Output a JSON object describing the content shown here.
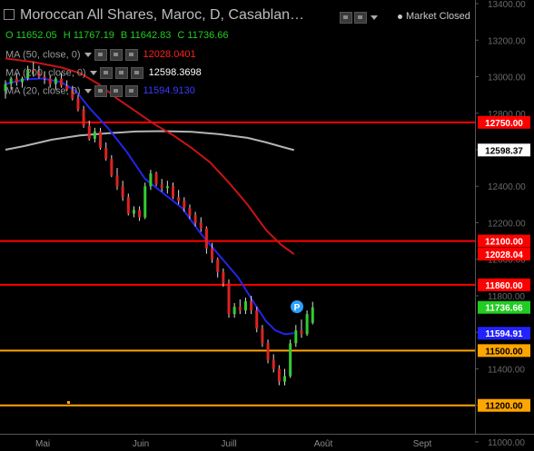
{
  "header": {
    "title": "Moroccan All Shares, Maroc, D, Casablan…",
    "ohlc": {
      "o": "O 11652.05",
      "h": "H 11767.19",
      "l": "B 11642.83",
      "c": "C 11736.66"
    },
    "market_status": "Market Closed",
    "ma": [
      {
        "label": "MA (50, close, 0)",
        "value": "12028.0401",
        "color": "#ff2020"
      },
      {
        "label": "MA (200, close, 0)",
        "value": "12598.3698",
        "color": "#ffffff"
      },
      {
        "label": "MA (20, close, 0)",
        "value": "11594.9130",
        "color": "#2a2aff"
      }
    ]
  },
  "chart_data": {
    "type": "candlestick",
    "ylim": [
      10950,
      13420
    ],
    "y_ticks": [
      "13400.00",
      "13200.00",
      "13000.00",
      "12800.00",
      "12600.00",
      "12400.00",
      "12200.00",
      "12000.00",
      "11800.00",
      "11600.00",
      "11400.00",
      "11200.00",
      "11000.00"
    ],
    "x_ticks": [
      "Mai",
      "Juin",
      "Juill",
      "Août",
      "Sept"
    ],
    "horizontal_lines": [
      {
        "value": 12750,
        "color": "#ff0000",
        "label": "12750.00"
      },
      {
        "value": 12100,
        "color": "#ff0000",
        "label": "12100.00"
      },
      {
        "value": 11860,
        "color": "#ff0000",
        "label": "11860.00"
      },
      {
        "value": 11500,
        "color": "#ffa500",
        "label": "11500.00"
      },
      {
        "value": 11200,
        "color": "#ffa500",
        "label": "11200.00"
      }
    ],
    "price_labels": [
      {
        "value": 12598.37,
        "text": "12598.37",
        "bg": "#ffffff",
        "fg": "#000000"
      },
      {
        "value": 12028.04,
        "text": "12028.04",
        "bg": "#ff0000",
        "fg": "#ffffff"
      },
      {
        "value": 11736.66,
        "text": "11736.66",
        "bg": "#22cc22",
        "fg": "#ffffff"
      },
      {
        "value": 11594.91,
        "text": "11594.91",
        "bg": "#2222ff",
        "fg": "#ffffff"
      }
    ],
    "ma200": [
      [
        0,
        12600
      ],
      [
        10,
        12620
      ],
      [
        25,
        12655
      ],
      [
        40,
        12678
      ],
      [
        55,
        12690
      ],
      [
        70,
        12700
      ],
      [
        85,
        12702
      ],
      [
        100,
        12698
      ],
      [
        115,
        12685
      ],
      [
        130,
        12665
      ],
      [
        140,
        12640
      ],
      [
        150,
        12612
      ],
      [
        155,
        12598
      ]
    ],
    "ma50": [
      [
        0,
        13100
      ],
      [
        15,
        13080
      ],
      [
        30,
        13050
      ],
      [
        40,
        13020
      ],
      [
        50,
        12960
      ],
      [
        60,
        12880
      ],
      [
        70,
        12810
      ],
      [
        80,
        12740
      ],
      [
        90,
        12680
      ],
      [
        100,
        12610
      ],
      [
        110,
        12530
      ],
      [
        120,
        12420
      ],
      [
        130,
        12300
      ],
      [
        140,
        12160
      ],
      [
        148,
        12080
      ],
      [
        155,
        12028
      ]
    ],
    "ma20": [
      [
        0,
        12960
      ],
      [
        10,
        12985
      ],
      [
        20,
        12990
      ],
      [
        30,
        12970
      ],
      [
        38,
        12920
      ],
      [
        45,
        12830
      ],
      [
        55,
        12720
      ],
      [
        65,
        12590
      ],
      [
        75,
        12440
      ],
      [
        85,
        12360
      ],
      [
        95,
        12280
      ],
      [
        105,
        12140
      ],
      [
        115,
        12020
      ],
      [
        125,
        11900
      ],
      [
        133,
        11770
      ],
      [
        140,
        11660
      ],
      [
        145,
        11610
      ],
      [
        150,
        11590
      ],
      [
        155,
        11595
      ]
    ],
    "candles": [
      [
        0,
        12920,
        12980,
        12880,
        12960
      ],
      [
        3,
        12960,
        13000,
        12930,
        12990
      ],
      [
        6,
        12990,
        13020,
        12950,
        12970
      ],
      [
        9,
        12970,
        13000,
        12940,
        12990
      ],
      [
        12,
        12990,
        13060,
        12980,
        13040
      ],
      [
        15,
        13040,
        13080,
        13000,
        13030
      ],
      [
        18,
        13030,
        13060,
        12990,
        13000
      ],
      [
        21,
        13000,
        13030,
        12960,
        12990
      ],
      [
        24,
        12990,
        13010,
        12940,
        12960
      ],
      [
        27,
        12960,
        13000,
        12930,
        12990
      ],
      [
        30,
        12990,
        13020,
        12940,
        12950
      ],
      [
        33,
        12950,
        12980,
        12920,
        12930
      ],
      [
        36,
        12930,
        12950,
        12870,
        12880
      ],
      [
        39,
        12880,
        12900,
        12810,
        12820
      ],
      [
        42,
        12820,
        12840,
        12720,
        12730
      ],
      [
        45,
        12730,
        12760,
        12650,
        12660
      ],
      [
        48,
        12660,
        12720,
        12640,
        12700
      ],
      [
        51,
        12700,
        12720,
        12600,
        12610
      ],
      [
        54,
        12610,
        12640,
        12540,
        12550
      ],
      [
        57,
        12550,
        12570,
        12450,
        12460
      ],
      [
        60,
        12460,
        12500,
        12380,
        12400
      ],
      [
        63,
        12400,
        12430,
        12320,
        12340
      ],
      [
        66,
        12340,
        12360,
        12240,
        12250
      ],
      [
        69,
        12250,
        12290,
        12230,
        12270
      ],
      [
        72,
        12270,
        12290,
        12210,
        12230
      ],
      [
        75,
        12230,
        12420,
        12220,
        12400
      ],
      [
        78,
        12400,
        12490,
        12380,
        12470
      ],
      [
        81,
        12470,
        12480,
        12400,
        12410
      ],
      [
        84,
        12410,
        12440,
        12370,
        12390
      ],
      [
        87,
        12390,
        12430,
        12360,
        12400
      ],
      [
        90,
        12400,
        12420,
        12330,
        12340
      ],
      [
        93,
        12340,
        12380,
        12300,
        12320
      ],
      [
        96,
        12320,
        12340,
        12260,
        12280
      ],
      [
        99,
        12280,
        12300,
        12220,
        12240
      ],
      [
        102,
        12240,
        12260,
        12180,
        12200
      ],
      [
        105,
        12200,
        12230,
        12150,
        12170
      ],
      [
        108,
        12170,
        12180,
        12030,
        12060
      ],
      [
        111,
        12060,
        12090,
        11980,
        12000
      ],
      [
        114,
        12000,
        12010,
        11900,
        11930
      ],
      [
        117,
        11930,
        11950,
        11850,
        11870
      ],
      [
        120,
        11870,
        11890,
        11680,
        11700
      ],
      [
        123,
        11700,
        11760,
        11680,
        11740
      ],
      [
        126,
        11740,
        11780,
        11700,
        11720
      ],
      [
        129,
        11720,
        11790,
        11700,
        11770
      ],
      [
        132,
        11770,
        11800,
        11700,
        11720
      ],
      [
        135,
        11720,
        11740,
        11600,
        11620
      ],
      [
        138,
        11620,
        11640,
        11520,
        11540
      ],
      [
        141,
        11540,
        11560,
        11430,
        11450
      ],
      [
        144,
        11450,
        11480,
        11380,
        11400
      ],
      [
        147,
        11400,
        11420,
        11310,
        11330
      ],
      [
        150,
        11330,
        11400,
        11310,
        11360
      ],
      [
        153,
        11360,
        11560,
        11350,
        11540
      ],
      [
        156,
        11540,
        11640,
        11520,
        11610
      ],
      [
        159,
        11610,
        11670,
        11570,
        11590
      ],
      [
        162,
        11590,
        11720,
        11580,
        11700
      ],
      [
        165,
        11652,
        11767,
        11643,
        11737
      ]
    ]
  }
}
